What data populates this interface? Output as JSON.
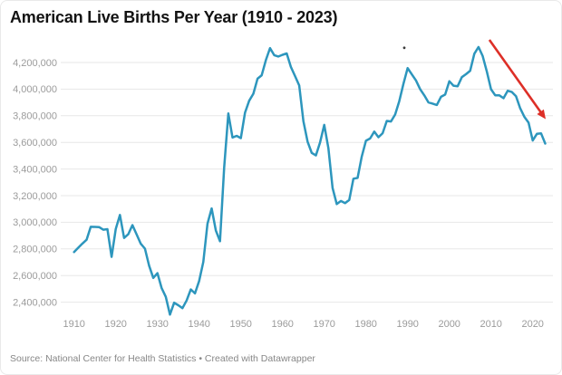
{
  "header": {
    "title": "American Live Births Per Year (1910 - 2023)"
  },
  "footer": {
    "text": "Source: National Center for Health Statistics • Created with Datawrapper"
  },
  "colors": {
    "background": "#ffffff",
    "line": "#2d96bd",
    "arrow": "#dd2f27",
    "grid": "#e7e7e7",
    "axis_label": "#9b9b9b",
    "title": "#131313",
    "footer": "#878787",
    "dot": "#3a3a3a"
  },
  "chart_data": {
    "type": "line",
    "title": "American Live Births Per Year (1910 - 2023)",
    "xlabel": "",
    "ylabel": "",
    "grid": "horizontal",
    "legend": "none",
    "xlim": [
      1907,
      2025
    ],
    "ylim": [
      2300000,
      4380000
    ],
    "y_tick_labels": [
      "4,200,000",
      "4,000,000",
      "3,800,000",
      "3,600,000",
      "3,400,000",
      "3,200,000",
      "3,000,000",
      "2,800,000",
      "2,600,000",
      "2,400,000"
    ],
    "x_tick_labels": [
      "1910",
      "1920",
      "1930",
      "1940",
      "1950",
      "1960",
      "1970",
      "1980",
      "1990",
      "2000",
      "2010",
      "2020"
    ],
    "x": [
      1910,
      1911,
      1912,
      1913,
      1914,
      1915,
      1916,
      1917,
      1918,
      1919,
      1920,
      1921,
      1922,
      1923,
      1924,
      1925,
      1926,
      1927,
      1928,
      1929,
      1930,
      1931,
      1932,
      1933,
      1934,
      1935,
      1936,
      1937,
      1938,
      1939,
      1940,
      1941,
      1942,
      1943,
      1944,
      1945,
      1946,
      1947,
      1948,
      1949,
      1950,
      1951,
      1952,
      1953,
      1954,
      1955,
      1956,
      1957,
      1958,
      1959,
      1960,
      1961,
      1962,
      1963,
      1964,
      1965,
      1966,
      1967,
      1968,
      1969,
      1970,
      1971,
      1972,
      1973,
      1974,
      1975,
      1976,
      1977,
      1978,
      1979,
      1980,
      1981,
      1982,
      1983,
      1984,
      1985,
      1986,
      1987,
      1988,
      1989,
      1990,
      1991,
      1992,
      1993,
      1994,
      1995,
      1996,
      1997,
      1998,
      1999,
      2000,
      2001,
      2002,
      2003,
      2004,
      2005,
      2006,
      2007,
      2008,
      2009,
      2010,
      2011,
      2012,
      2013,
      2014,
      2015,
      2016,
      2017,
      2018,
      2019,
      2020,
      2021,
      2022,
      2023
    ],
    "series": [
      {
        "name": "Live births",
        "values": [
          2777000,
          2809000,
          2840000,
          2869000,
          2966000,
          2965000,
          2964000,
          2944000,
          2948000,
          2740000,
          2950000,
          3055000,
          2882000,
          2910000,
          2979000,
          2909000,
          2839000,
          2802000,
          2674000,
          2582000,
          2618000,
          2506000,
          2440000,
          2307000,
          2396000,
          2377000,
          2355000,
          2413000,
          2496000,
          2466000,
          2559000,
          2703000,
          2989000,
          3104000,
          2939000,
          2858000,
          3411000,
          3817000,
          3637000,
          3649000,
          3632000,
          3823000,
          3913000,
          3965000,
          4078000,
          4104000,
          4218000,
          4308000,
          4255000,
          4245000,
          4258000,
          4268000,
          4167000,
          4098000,
          4027000,
          3760000,
          3606000,
          3521000,
          3502000,
          3600000,
          3731000,
          3556000,
          3258000,
          3137000,
          3160000,
          3144000,
          3168000,
          3327000,
          3333000,
          3494000,
          3612000,
          3629000,
          3681000,
          3639000,
          3669000,
          3761000,
          3757000,
          3809000,
          3910000,
          4041000,
          4158000,
          4111000,
          4065000,
          4000000,
          3953000,
          3900000,
          3891000,
          3881000,
          3942000,
          3959000,
          4059000,
          4026000,
          4022000,
          4090000,
          4112000,
          4138000,
          4266000,
          4316000,
          4248000,
          4131000,
          3999000,
          3954000,
          3953000,
          3932000,
          3988000,
          3978000,
          3946000,
          3856000,
          3792000,
          3748000,
          3614000,
          3664000,
          3668000,
          3591000
        ]
      }
    ],
    "annotations": {
      "arrow": {
        "from": {
          "year": 2009.6,
          "value": 4370000
        },
        "to": {
          "year": 2023.1,
          "value": 3775000
        }
      },
      "dot": {
        "year": 1989.2,
        "value": 4310000
      }
    }
  }
}
